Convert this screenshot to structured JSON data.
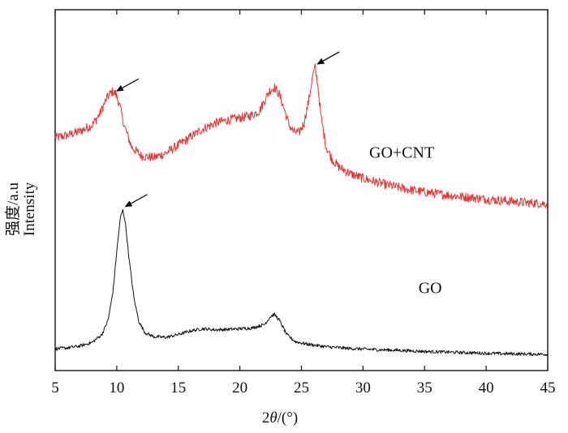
{
  "chart_data": {
    "type": "line",
    "title": "",
    "xlabel_prefix": "2",
    "xlabel_symbol": "θ",
    "xlabel_suffix": "/(°)",
    "ylabel_line1": "强度/a.u",
    "ylabel_line2": "Intensity",
    "xlim": [
      5,
      45
    ],
    "ylim": [
      0,
      100
    ],
    "xticks": [
      5,
      10,
      15,
      20,
      25,
      30,
      35,
      40,
      45
    ],
    "grid": false,
    "legend": "none",
    "series": [
      {
        "name": "GO+CNT",
        "color": "#e8312e",
        "label_pos": [
          30.5,
          59
        ],
        "x": [
          5,
          6,
          7,
          8,
          8.6,
          9.2,
          9.6,
          9.9,
          10.2,
          10.6,
          11.2,
          12,
          13,
          14,
          15,
          16,
          17,
          18,
          19,
          20,
          21,
          21.6,
          22,
          22.4,
          22.8,
          23.2,
          23.6,
          24,
          24.4,
          24.8,
          25.2,
          25.6,
          25.9,
          26.1,
          26.3,
          26.6,
          27,
          27.5,
          28,
          29,
          30,
          31,
          32,
          33,
          34,
          35,
          36,
          37,
          38,
          39,
          40,
          41,
          42,
          43,
          44,
          45
        ],
        "y": [
          64.5,
          65.2,
          66.3,
          68,
          71,
          75.5,
          77.3,
          76.8,
          74,
          68,
          62,
          59.5,
          59,
          60.3,
          62.5,
          64.8,
          67,
          68.6,
          69.4,
          70,
          70.8,
          72,
          74.8,
          77.5,
          78.5,
          76.5,
          72.5,
          68,
          66,
          66,
          68.5,
          75,
          81.5,
          84,
          80,
          70,
          62,
          58.5,
          56.5,
          54.5,
          53.3,
          52.3,
          51.4,
          50.7,
          50,
          49.5,
          49,
          48.6,
          48.2,
          47.9,
          47.5,
          47.2,
          46.9,
          46.6,
          46.4,
          46.2
        ]
      },
      {
        "name": "GO",
        "color": "#111111",
        "label_pos": [
          34.5,
          21.5
        ],
        "x": [
          5,
          6,
          7,
          8,
          8.8,
          9.3,
          9.7,
          10,
          10.3,
          10.5,
          10.7,
          11,
          11.4,
          11.8,
          12.3,
          13,
          14,
          15,
          16,
          17,
          18,
          19,
          20,
          21,
          22,
          22.5,
          22.8,
          23.2,
          23.8,
          24.5,
          25.5,
          27,
          29,
          31,
          33,
          35,
          37,
          39,
          41,
          43,
          45
        ],
        "y": [
          6,
          6.3,
          6.8,
          7.8,
          10,
          14,
          22,
          33,
          42.5,
          44.5,
          41,
          31,
          20,
          13.5,
          10.5,
          9.4,
          9.2,
          10,
          11,
          11.6,
          11.3,
          11.4,
          11.6,
          11.8,
          12.8,
          15,
          15.6,
          14,
          10,
          8,
          7.3,
          6.6,
          6.1,
          5.8,
          5.6,
          5.3,
          5.1,
          4.9,
          4.7,
          4.6,
          4.5
        ]
      }
    ],
    "arrows": [
      {
        "target": [
          9.8,
          77
        ],
        "color": "#111111"
      },
      {
        "target": [
          26.1,
          84.5
        ],
        "color": "#111111"
      },
      {
        "target": [
          10.5,
          45
        ],
        "color": "#111111"
      }
    ]
  }
}
